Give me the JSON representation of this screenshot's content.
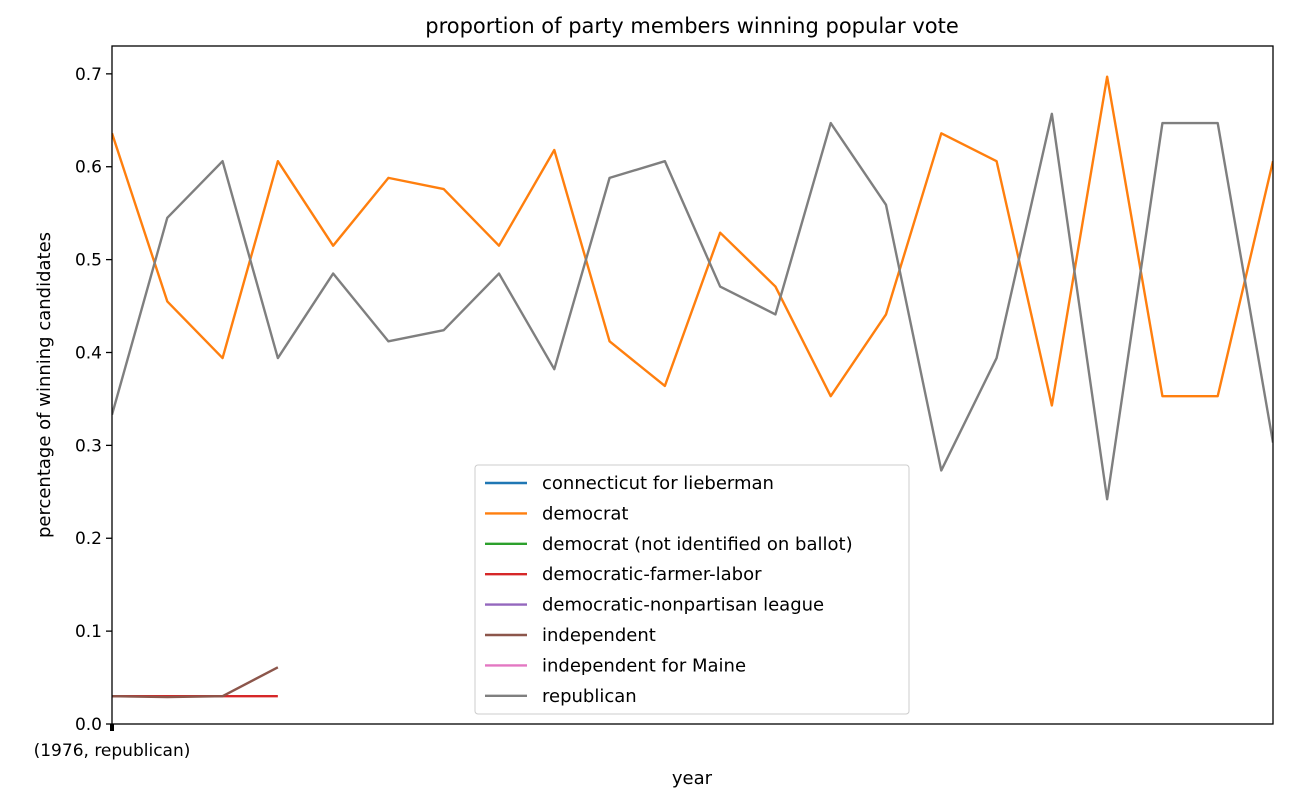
{
  "chart_data": {
    "type": "line",
    "title": "proportion of party members winning popular vote",
    "xlabel": "year",
    "ylabel": "percentage of winning candidates",
    "ylim": [
      0.0,
      0.73
    ],
    "yticks": [
      "0.0",
      "0.1",
      "0.2",
      "0.3",
      "0.4",
      "0.5",
      "0.6",
      "0.7"
    ],
    "xtick_label": "(1976, republican)",
    "grid": false,
    "legend_position": "lower center",
    "point_count": 22,
    "series": [
      {
        "name": "connecticut for lieberman",
        "color": "#1f77b4",
        "values": []
      },
      {
        "name": "democrat",
        "color": "#ff7f0e",
        "values": [
          0.636,
          0.455,
          0.394,
          0.606,
          0.515,
          0.588,
          0.576,
          0.515,
          0.618,
          0.412,
          0.364,
          0.529,
          0.471,
          0.353,
          0.441,
          0.636,
          0.606,
          0.343,
          0.697,
          0.353,
          0.353,
          0.606
        ]
      },
      {
        "name": "democrat (not identified on ballot)",
        "color": "#2ca02c",
        "values": []
      },
      {
        "name": "democratic-farmer-labor",
        "color": "#d62728",
        "values": [
          0.03,
          0.03,
          0.03,
          0.03
        ]
      },
      {
        "name": "democratic-nonpartisan league",
        "color": "#9467bd",
        "values": []
      },
      {
        "name": "independent",
        "color": "#8c564b",
        "values": [
          0.03,
          0.029,
          0.03,
          0.061
        ]
      },
      {
        "name": "independent for Maine",
        "color": "#e377c2",
        "values": []
      },
      {
        "name": "republican",
        "color": "#7f7f7f",
        "values": [
          0.333,
          0.545,
          0.606,
          0.394,
          0.485,
          0.412,
          0.424,
          0.485,
          0.382,
          0.588,
          0.606,
          0.471,
          0.441,
          0.647,
          0.559,
          0.273,
          0.394,
          0.657,
          0.242,
          0.647,
          0.647,
          0.303
        ]
      }
    ]
  }
}
